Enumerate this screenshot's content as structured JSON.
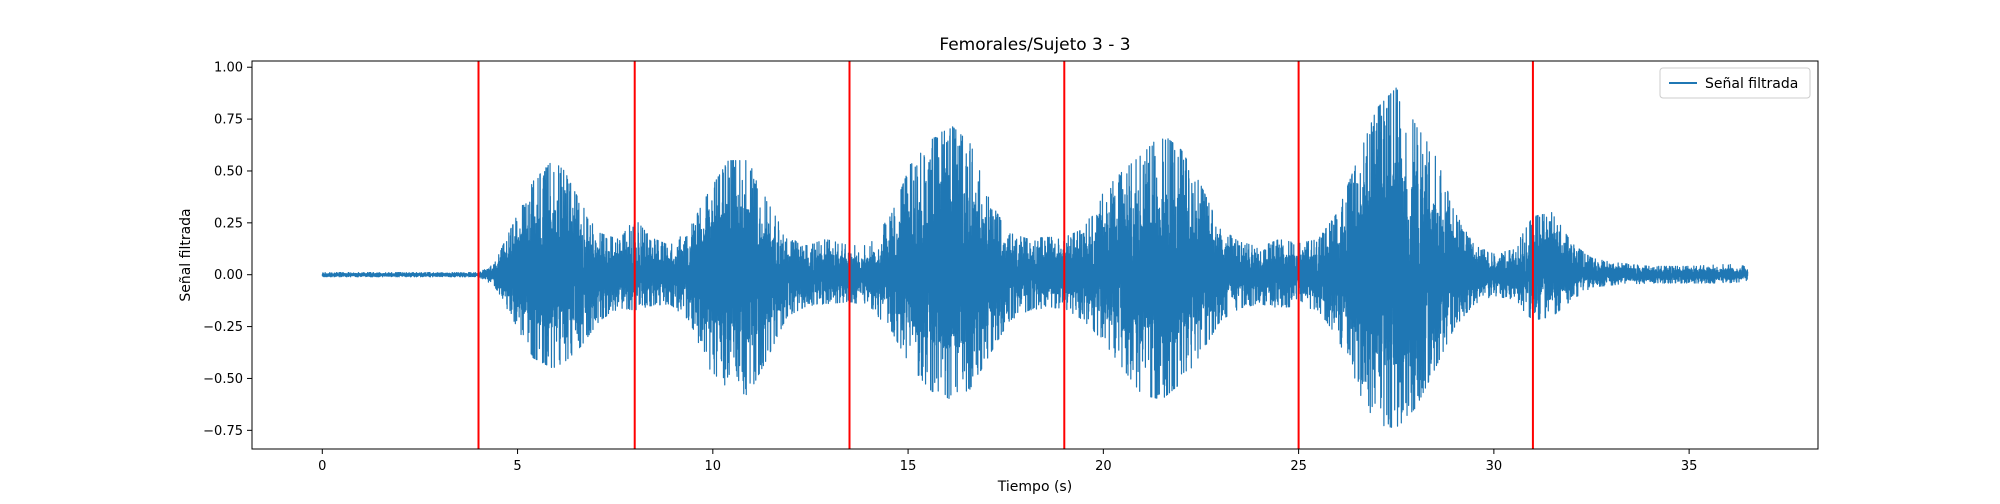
{
  "chart_data": {
    "type": "line",
    "title": "Femorales/Sujeto 3 - 3",
    "xlabel": "Tiempo (s)",
    "ylabel": "Señal filtrada",
    "xlim": [
      -1.8,
      38.3
    ],
    "ylim": [
      -0.84,
      1.03
    ],
    "x_ticks": [
      0,
      5,
      10,
      15,
      20,
      25,
      30,
      35
    ],
    "x_tick_labels": [
      "0",
      "5",
      "10",
      "15",
      "20",
      "25",
      "30",
      "35"
    ],
    "y_ticks": [
      1.0,
      0.75,
      0.5,
      0.25,
      0.0,
      -0.25,
      -0.5,
      -0.75
    ],
    "y_tick_labels": [
      "1.00",
      "0.75",
      "0.50",
      "0.25",
      "0.00",
      "−0.25",
      "−0.50",
      "−0.75"
    ],
    "legend": {
      "placement": "top-right",
      "entries": [
        "Señal filtrada"
      ]
    },
    "grid": false,
    "series": [
      {
        "name": "Señal filtrada",
        "color": "#1f77b4",
        "envelope": {
          "t": [
            0.0,
            4.0,
            4.4,
            4.9,
            5.4,
            5.9,
            6.2,
            6.6,
            7.1,
            7.6,
            8.0,
            8.4,
            8.9,
            9.4,
            9.9,
            10.4,
            10.9,
            11.4,
            11.9,
            12.4,
            12.9,
            13.5,
            14.0,
            14.6,
            15.1,
            15.6,
            16.1,
            16.6,
            17.1,
            17.6,
            18.1,
            18.5,
            19.0,
            19.5,
            20.0,
            20.5,
            21.0,
            21.5,
            22.0,
            22.5,
            23.0,
            23.5,
            24.0,
            24.5,
            25.0,
            25.5,
            26.0,
            26.5,
            27.0,
            27.5,
            28.0,
            28.5,
            29.0,
            29.5,
            30.0,
            30.5,
            31.0,
            31.5,
            32.0,
            32.5,
            33.0,
            34.0,
            35.0,
            36.0,
            36.5
          ],
          "upper": [
            0.01,
            0.01,
            0.05,
            0.25,
            0.45,
            0.55,
            0.5,
            0.35,
            0.2,
            0.17,
            0.27,
            0.18,
            0.14,
            0.22,
            0.4,
            0.55,
            0.55,
            0.35,
            0.18,
            0.14,
            0.17,
            0.14,
            0.14,
            0.3,
            0.55,
            0.65,
            0.72,
            0.63,
            0.35,
            0.2,
            0.17,
            0.18,
            0.18,
            0.22,
            0.4,
            0.5,
            0.58,
            0.68,
            0.6,
            0.43,
            0.22,
            0.16,
            0.13,
            0.17,
            0.15,
            0.17,
            0.3,
            0.55,
            0.8,
            0.9,
            0.72,
            0.58,
            0.3,
            0.14,
            0.1,
            0.12,
            0.28,
            0.3,
            0.15,
            0.08,
            0.06,
            0.04,
            0.04,
            0.05,
            0.04
          ],
          "lower": [
            -0.01,
            -0.01,
            -0.05,
            -0.22,
            -0.4,
            -0.45,
            -0.42,
            -0.35,
            -0.22,
            -0.16,
            -0.17,
            -0.15,
            -0.14,
            -0.22,
            -0.45,
            -0.55,
            -0.58,
            -0.4,
            -0.2,
            -0.15,
            -0.14,
            -0.13,
            -0.15,
            -0.28,
            -0.45,
            -0.56,
            -0.6,
            -0.55,
            -0.38,
            -0.22,
            -0.17,
            -0.16,
            -0.16,
            -0.22,
            -0.32,
            -0.45,
            -0.58,
            -0.6,
            -0.52,
            -0.38,
            -0.22,
            -0.16,
            -0.14,
            -0.16,
            -0.15,
            -0.17,
            -0.3,
            -0.55,
            -0.72,
            -0.74,
            -0.64,
            -0.45,
            -0.25,
            -0.14,
            -0.1,
            -0.12,
            -0.22,
            -0.2,
            -0.12,
            -0.06,
            -0.05,
            -0.04,
            -0.04,
            -0.04,
            -0.03
          ]
        }
      }
    ],
    "vertical_lines": {
      "color": "#ff0000",
      "x": [
        4.0,
        8.0,
        13.5,
        19.0,
        25.0,
        31.0
      ]
    }
  }
}
